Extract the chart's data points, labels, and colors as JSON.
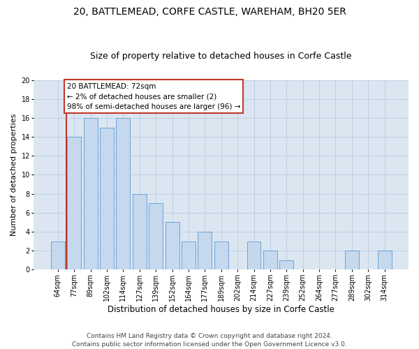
{
  "title": "20, BATTLEMEAD, CORFE CASTLE, WAREHAM, BH20 5ER",
  "subtitle": "Size of property relative to detached houses in Corfe Castle",
  "xlabel": "Distribution of detached houses by size in Corfe Castle",
  "ylabel": "Number of detached properties",
  "categories": [
    "64sqm",
    "77sqm",
    "89sqm",
    "102sqm",
    "114sqm",
    "127sqm",
    "139sqm",
    "152sqm",
    "164sqm",
    "177sqm",
    "189sqm",
    "202sqm",
    "214sqm",
    "227sqm",
    "239sqm",
    "252sqm",
    "264sqm",
    "277sqm",
    "289sqm",
    "302sqm",
    "314sqm"
  ],
  "values": [
    3,
    14,
    16,
    15,
    16,
    8,
    7,
    5,
    3,
    4,
    3,
    0,
    3,
    2,
    1,
    0,
    0,
    0,
    2,
    0,
    2
  ],
  "bar_color": "#c5d8ed",
  "bar_edge_color": "#5b9bd5",
  "annotation_line_color": "#c0392b",
  "annotation_text_line1": "20 BATTLEMEAD: 72sqm",
  "annotation_text_line2": "← 2% of detached houses are smaller (2)",
  "annotation_text_line3": "98% of semi-detached houses are larger (96) →",
  "annotation_box_edge": "#c0392b",
  "ylim_min": 0,
  "ylim_max": 20,
  "yticks": [
    0,
    2,
    4,
    6,
    8,
    10,
    12,
    14,
    16,
    18,
    20
  ],
  "grid_color": "#b8cce4",
  "plot_bg_color": "#dce6f1",
  "footnote_line1": "Contains HM Land Registry data © Crown copyright and database right 2024.",
  "footnote_line2": "Contains public sector information licensed under the Open Government Licence v3.0.",
  "title_fontsize": 10,
  "subtitle_fontsize": 9,
  "xlabel_fontsize": 8.5,
  "ylabel_fontsize": 8,
  "tick_fontsize": 7,
  "annotation_fontsize": 7.5,
  "footnote_fontsize": 6.5
}
